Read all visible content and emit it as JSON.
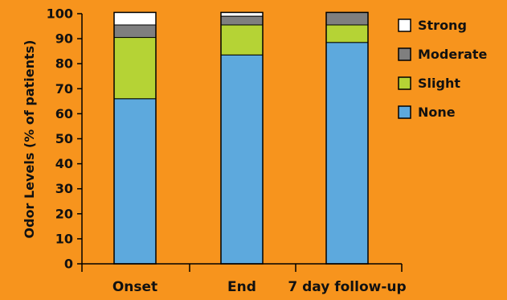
{
  "chart_data": {
    "type": "bar",
    "stacked": true,
    "title": "",
    "xlabel": "",
    "ylabel": "Odor Levels (% of patients)",
    "ylim": [
      0,
      100
    ],
    "yticks": [
      0,
      10,
      20,
      30,
      40,
      50,
      60,
      70,
      80,
      90,
      100
    ],
    "grid": false,
    "legend_position": "top-right",
    "categories": [
      "Onset",
      "End",
      "7 day follow-up"
    ],
    "series": [
      {
        "name": "None",
        "color": "#5DA9DD",
        "values": [
          66,
          83.5,
          88.5
        ]
      },
      {
        "name": "Slight",
        "color": "#B5D335",
        "values": [
          24.5,
          12,
          7
        ]
      },
      {
        "name": "Moderate",
        "color": "#7F7F7F",
        "values": [
          5,
          3.5,
          5
        ]
      },
      {
        "name": "Strong",
        "color": "#FFFFFF",
        "values": [
          5,
          1.5,
          0
        ]
      }
    ]
  }
}
